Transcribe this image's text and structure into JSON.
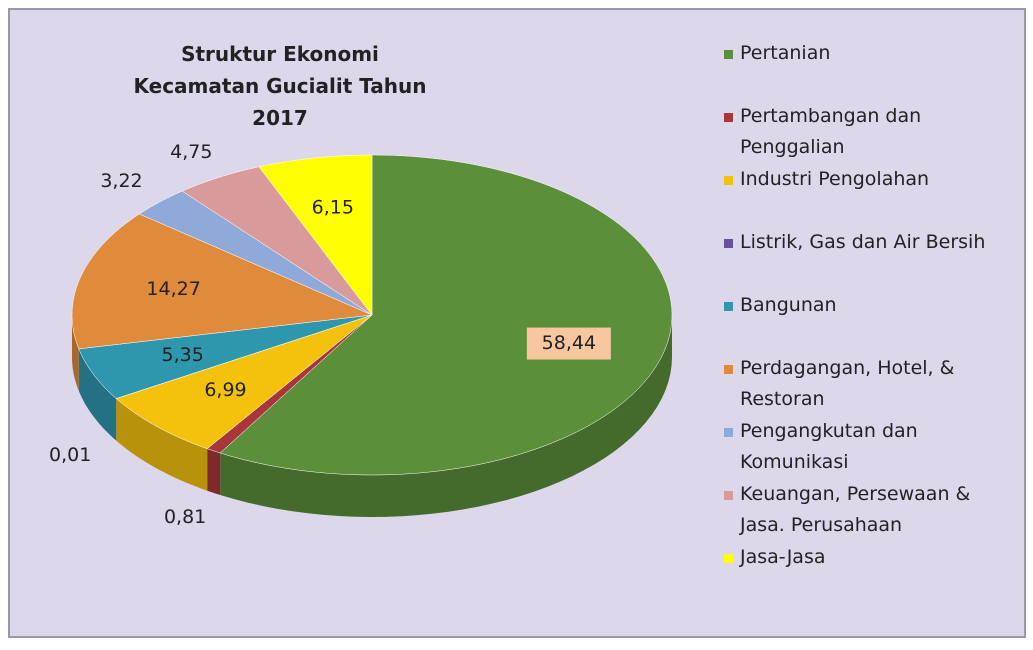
{
  "chart_data": {
    "type": "pie3d",
    "title": "Struktur Ekonomi Kecamatan Gucialit Tahun 2017",
    "categories": [
      "Pertanian",
      "Pertambangan dan Penggalian",
      "Industri Pengolahan",
      "Listrik, Gas dan Air Bersih",
      "Bangunan",
      "Perdagangan, Hotel, & Restoran",
      "Pengangkutan dan Komunikasi",
      "Keuangan, Persewaan & Jasa. Perusahaan",
      "Jasa-Jasa"
    ],
    "values": [
      58.44,
      0.81,
      6.99,
      0.01,
      5.35,
      14.27,
      3.22,
      4.75,
      6.15
    ],
    "value_labels": [
      "58,44",
      "0,81",
      "6,99",
      "0,01",
      "5,35",
      "14,27",
      "3,22",
      "4,75",
      "6,15"
    ],
    "colors": [
      "#5b8f3a",
      "#a8363a",
      "#f4c20d",
      "#6a4f9e",
      "#2f97ad",
      "#e08a3c",
      "#8fa9d9",
      "#d99a9b",
      "#ffff00"
    ],
    "legend": "right"
  }
}
